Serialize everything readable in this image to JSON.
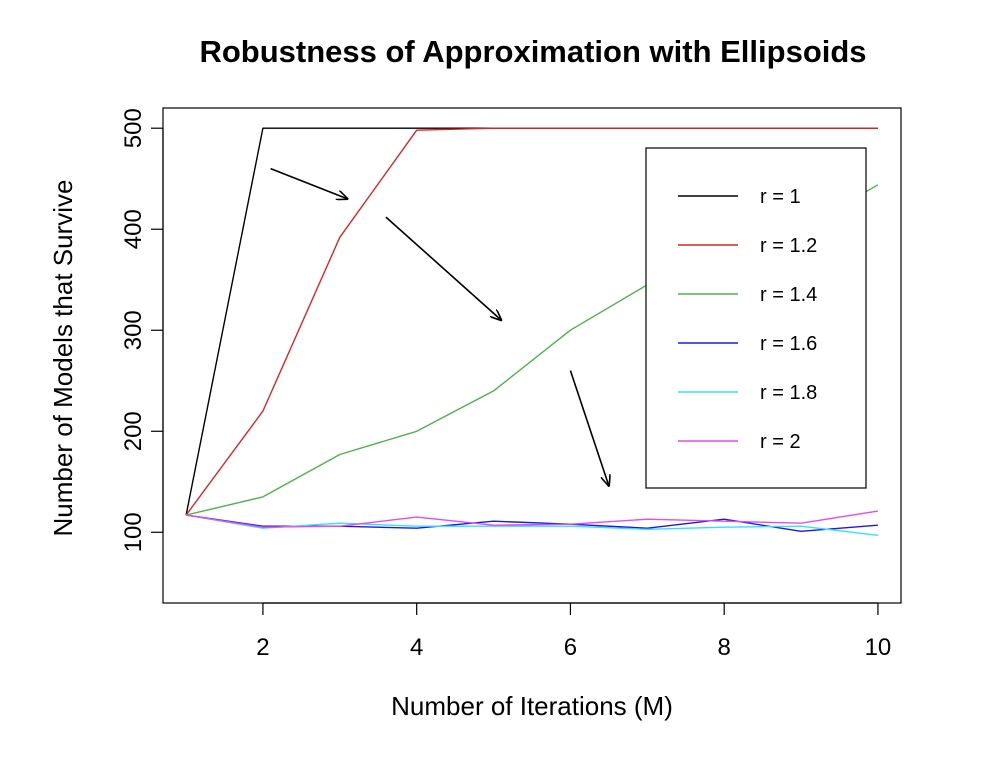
{
  "chart_data": {
    "type": "line",
    "title": "Robustness of Approximation with Ellipsoids",
    "xlabel": "Number of Iterations (M)",
    "ylabel": "Number of Models that Survive",
    "xlim": [
      0.7,
      10.3
    ],
    "ylim": [
      30,
      520
    ],
    "x_ticks": [
      2,
      4,
      6,
      8,
      10
    ],
    "y_ticks": [
      100,
      200,
      300,
      400,
      500
    ],
    "x": [
      1,
      2,
      3,
      4,
      5,
      6,
      7,
      8,
      9,
      10
    ],
    "grid": false,
    "legend_position": "top-right",
    "series": [
      {
        "name": "r = 1",
        "color": "#000000",
        "values": [
          117,
          500,
          500,
          500,
          500,
          500,
          500,
          500,
          500,
          500
        ]
      },
      {
        "name": "r = 1.2",
        "color": "#d62728",
        "values": [
          117,
          220,
          392,
          498,
          500,
          500,
          500,
          500,
          500,
          500
        ]
      },
      {
        "name": "r = 1.4",
        "color": "#4db34d",
        "values": [
          117,
          135,
          177,
          200,
          240,
          300,
          345,
          370,
          400,
          444
        ]
      },
      {
        "name": "r = 1.6",
        "color": "#1a1ae6",
        "values": [
          117,
          106,
          106,
          104,
          111,
          108,
          104,
          113,
          101,
          107
        ]
      },
      {
        "name": "r = 1.8",
        "color": "#33e0ff",
        "values": [
          117,
          104,
          109,
          106,
          106,
          106,
          103,
          105,
          106,
          97
        ]
      },
      {
        "name": "r = 2",
        "color": "#e64de6",
        "values": [
          117,
          105,
          106,
          115,
          107,
          108,
          113,
          111,
          109,
          121
        ]
      }
    ],
    "annotations": [
      {
        "type": "arrow",
        "from": [
          2.1,
          460
        ],
        "to": [
          3.1,
          430
        ]
      },
      {
        "type": "arrow",
        "from": [
          3.6,
          412
        ],
        "to": [
          5.1,
          310
        ]
      },
      {
        "type": "arrow",
        "from": [
          6.0,
          260
        ],
        "to": [
          6.5,
          146
        ]
      }
    ]
  }
}
